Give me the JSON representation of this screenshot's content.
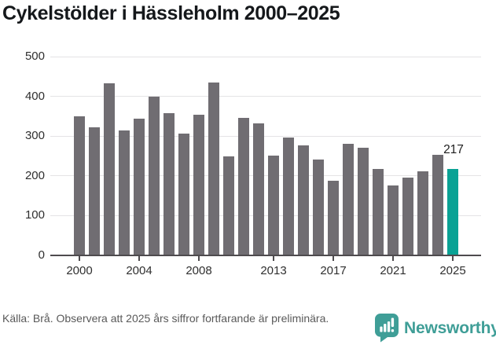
{
  "title": "Cykelstölder i Hässleholm 2000–2025",
  "chart_data": {
    "type": "bar",
    "title": "Cykelstölder i Hässleholm 2000–2025",
    "categories": [
      2000,
      2001,
      2002,
      2003,
      2004,
      2005,
      2006,
      2007,
      2008,
      2009,
      2010,
      2011,
      2012,
      2013,
      2014,
      2015,
      2016,
      2017,
      2018,
      2019,
      2020,
      2021,
      2022,
      2023,
      2024,
      2025
    ],
    "values": [
      350,
      323,
      432,
      314,
      343,
      400,
      357,
      306,
      354,
      434,
      249,
      345,
      332,
      251,
      296,
      276,
      242,
      188,
      281,
      270,
      217,
      175,
      195,
      211,
      252,
      217
    ],
    "xlabel": "",
    "ylabel": "",
    "ylim": [
      0,
      500
    ],
    "yticks": [
      0,
      100,
      200,
      300,
      400,
      500
    ],
    "xtick_years": [
      2000,
      2004,
      2008,
      2013,
      2017,
      2021,
      2025
    ],
    "grid": "horizontal",
    "legend": "none",
    "bar_color": "#706d72",
    "highlight_color": "#0aa295",
    "highlight_year": 2025,
    "annotation": {
      "year": 2025,
      "text": "217"
    }
  },
  "footer": {
    "source_note": "Källa: Brå. Observera att 2025 års siffror fortfarande är preliminära.",
    "brand": "Newsworthy",
    "brand_color": "#3f9e97"
  }
}
